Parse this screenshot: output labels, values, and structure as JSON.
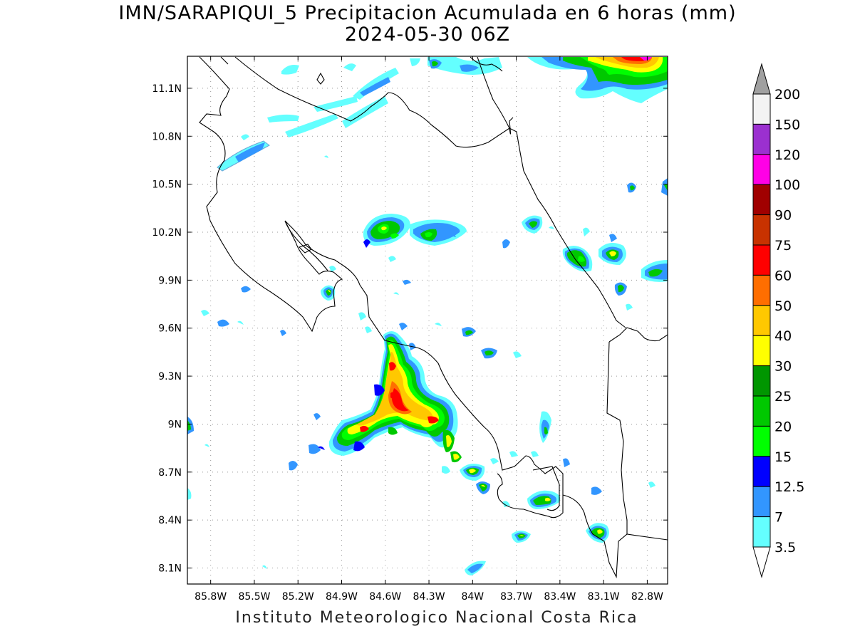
{
  "title": {
    "line1": "IMN/SARAPIQUI_5 Precipitacion Acumulada en 6 horas (mm)",
    "line2": "2024-05-30 06Z"
  },
  "footer": "Instituto Meteorologico Nacional Costa Rica",
  "axes": {
    "lat_ticks": [
      "11.1N",
      "10.8N",
      "10.5N",
      "10.2N",
      "9.9N",
      "9.6N",
      "9.3N",
      "9N",
      "8.7N",
      "8.4N",
      "8.1N"
    ],
    "lat_values": [
      11.1,
      10.8,
      10.5,
      10.2,
      9.9,
      9.6,
      9.3,
      9.0,
      8.7,
      8.4,
      8.1
    ],
    "lon_ticks": [
      "85.8W",
      "85.5W",
      "85.2W",
      "84.9W",
      "84.6W",
      "84.3W",
      "84W",
      "83.7W",
      "83.4W",
      "83.1W",
      "82.8W"
    ],
    "lon_values": [
      -85.8,
      -85.5,
      -85.2,
      -84.9,
      -84.6,
      -84.3,
      -84.0,
      -83.7,
      -83.4,
      -83.1,
      -82.8
    ],
    "lon_range": [
      -85.96,
      -82.66
    ],
    "lat_range": [
      8.0,
      11.3
    ],
    "grid": true
  },
  "colorbar": {
    "labels": [
      "200",
      "150",
      "120",
      "100",
      "90",
      "75",
      "60",
      "50",
      "40",
      "30",
      "25",
      "20",
      "15",
      "12.5",
      "7",
      "3.5"
    ],
    "colors": [
      "#f3f3f3",
      "#9b30d0",
      "#ff00e6",
      "#a00000",
      "#c83200",
      "#ff0000",
      "#ff6e00",
      "#ffc800",
      "#ffff00",
      "#009600",
      "#00c800",
      "#00ff00",
      "#0000ff",
      "#3296ff",
      "#64ffff"
    ],
    "top_arrow_color": "#a0a0a0",
    "bottom_arrow_color": "#ffffff"
  }
}
